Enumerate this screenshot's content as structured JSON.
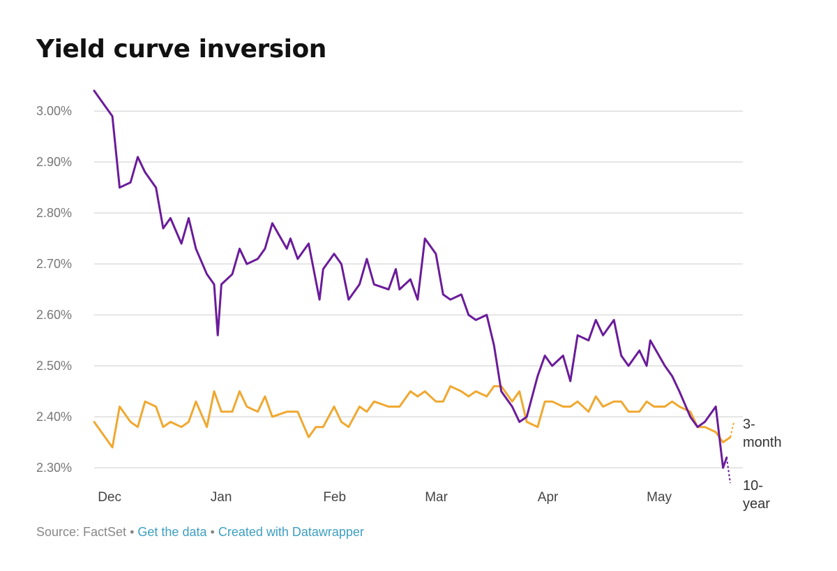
{
  "chart_data": {
    "type": "line",
    "title": "Yield curve inversion",
    "ylim": [
      2.27,
      3.04
    ],
    "yticks": [
      2.3,
      2.4,
      2.5,
      2.6,
      2.7,
      2.8,
      2.9,
      3.0
    ],
    "ytick_labels": [
      "2.30%",
      "2.40%",
      "2.50%",
      "2.60%",
      "2.70%",
      "2.80%",
      "2.90%",
      "3.00%"
    ],
    "x_start": "2018-11-30",
    "x_end": "2019-05-24",
    "xtick_dates": [
      "2018-12-01",
      "2019-01-01",
      "2019-02-01",
      "2019-03-01",
      "2019-04-01",
      "2019-05-01"
    ],
    "xtick_labels": [
      "Dec",
      "Jan",
      "Feb",
      "Mar",
      "Apr",
      "May"
    ],
    "grid": true,
    "legend": "inline labels at line ends",
    "series": [
      {
        "name": "10-year",
        "label_lines": [
          "10-",
          "year"
        ],
        "color": "#6a1b9a",
        "points": [
          [
            "2018-11-30",
            3.04
          ],
          [
            "2018-12-03",
            3.01
          ],
          [
            "2018-12-05",
            2.99
          ],
          [
            "2018-12-07",
            2.85
          ],
          [
            "2018-12-10",
            2.86
          ],
          [
            "2018-12-12",
            2.91
          ],
          [
            "2018-12-14",
            2.88
          ],
          [
            "2018-12-17",
            2.85
          ],
          [
            "2018-12-19",
            2.77
          ],
          [
            "2018-12-21",
            2.79
          ],
          [
            "2018-12-24",
            2.74
          ],
          [
            "2018-12-26",
            2.79
          ],
          [
            "2018-12-28",
            2.73
          ],
          [
            "2018-12-31",
            2.68
          ],
          [
            "2019-01-02",
            2.66
          ],
          [
            "2019-01-03",
            2.56
          ],
          [
            "2019-01-04",
            2.66
          ],
          [
            "2019-01-07",
            2.68
          ],
          [
            "2019-01-09",
            2.73
          ],
          [
            "2019-01-11",
            2.7
          ],
          [
            "2019-01-14",
            2.71
          ],
          [
            "2019-01-16",
            2.73
          ],
          [
            "2019-01-18",
            2.78
          ],
          [
            "2019-01-22",
            2.73
          ],
          [
            "2019-01-23",
            2.75
          ],
          [
            "2019-01-25",
            2.71
          ],
          [
            "2019-01-28",
            2.74
          ],
          [
            "2019-01-31",
            2.63
          ],
          [
            "2019-02-01",
            2.69
          ],
          [
            "2019-02-04",
            2.72
          ],
          [
            "2019-02-06",
            2.7
          ],
          [
            "2019-02-08",
            2.63
          ],
          [
            "2019-02-11",
            2.66
          ],
          [
            "2019-02-13",
            2.71
          ],
          [
            "2019-02-15",
            2.66
          ],
          [
            "2019-02-19",
            2.65
          ],
          [
            "2019-02-21",
            2.69
          ],
          [
            "2019-02-22",
            2.65
          ],
          [
            "2019-02-25",
            2.67
          ],
          [
            "2019-02-27",
            2.63
          ],
          [
            "2019-03-01",
            2.75
          ],
          [
            "2019-03-04",
            2.72
          ],
          [
            "2019-03-06",
            2.64
          ],
          [
            "2019-03-08",
            2.63
          ],
          [
            "2019-03-11",
            2.64
          ],
          [
            "2019-03-13",
            2.6
          ],
          [
            "2019-03-15",
            2.59
          ],
          [
            "2019-03-18",
            2.6
          ],
          [
            "2019-03-20",
            2.54
          ],
          [
            "2019-03-22",
            2.45
          ],
          [
            "2019-03-25",
            2.42
          ],
          [
            "2019-03-27",
            2.39
          ],
          [
            "2019-03-29",
            2.4
          ],
          [
            "2019-04-01",
            2.48
          ],
          [
            "2019-04-03",
            2.52
          ],
          [
            "2019-04-05",
            2.5
          ],
          [
            "2019-04-08",
            2.52
          ],
          [
            "2019-04-10",
            2.47
          ],
          [
            "2019-04-12",
            2.56
          ],
          [
            "2019-04-15",
            2.55
          ],
          [
            "2019-04-17",
            2.59
          ],
          [
            "2019-04-19",
            2.56
          ],
          [
            "2019-04-22",
            2.59
          ],
          [
            "2019-04-24",
            2.52
          ],
          [
            "2019-04-26",
            2.5
          ],
          [
            "2019-04-29",
            2.53
          ],
          [
            "2019-05-01",
            2.5
          ],
          [
            "2019-05-02",
            2.55
          ],
          [
            "2019-05-06",
            2.5
          ],
          [
            "2019-05-08",
            2.48
          ],
          [
            "2019-05-10",
            2.45
          ],
          [
            "2019-05-13",
            2.4
          ],
          [
            "2019-05-15",
            2.38
          ],
          [
            "2019-05-17",
            2.39
          ],
          [
            "2019-05-20",
            2.42
          ],
          [
            "2019-05-22",
            2.3
          ],
          [
            "2019-05-23",
            2.32
          ],
          [
            "2019-05-24",
            2.27
          ]
        ]
      },
      {
        "name": "3-month",
        "label_lines": [
          "3-",
          "month"
        ],
        "color": "#f0a830",
        "points": [
          [
            "2018-11-30",
            2.39
          ],
          [
            "2018-12-03",
            2.36
          ],
          [
            "2018-12-05",
            2.34
          ],
          [
            "2018-12-07",
            2.42
          ],
          [
            "2018-12-10",
            2.39
          ],
          [
            "2018-12-12",
            2.38
          ],
          [
            "2018-12-14",
            2.43
          ],
          [
            "2018-12-17",
            2.42
          ],
          [
            "2018-12-19",
            2.38
          ],
          [
            "2018-12-21",
            2.39
          ],
          [
            "2018-12-24",
            2.38
          ],
          [
            "2018-12-26",
            2.39
          ],
          [
            "2018-12-28",
            2.43
          ],
          [
            "2018-12-31",
            2.38
          ],
          [
            "2019-01-02",
            2.45
          ],
          [
            "2019-01-04",
            2.41
          ],
          [
            "2019-01-07",
            2.41
          ],
          [
            "2019-01-09",
            2.45
          ],
          [
            "2019-01-11",
            2.42
          ],
          [
            "2019-01-14",
            2.41
          ],
          [
            "2019-01-16",
            2.44
          ],
          [
            "2019-01-18",
            2.4
          ],
          [
            "2019-01-22",
            2.41
          ],
          [
            "2019-01-25",
            2.41
          ],
          [
            "2019-01-28",
            2.36
          ],
          [
            "2019-01-30",
            2.38
          ],
          [
            "2019-02-01",
            2.38
          ],
          [
            "2019-02-04",
            2.42
          ],
          [
            "2019-02-06",
            2.39
          ],
          [
            "2019-02-08",
            2.38
          ],
          [
            "2019-02-11",
            2.42
          ],
          [
            "2019-02-13",
            2.41
          ],
          [
            "2019-02-15",
            2.43
          ],
          [
            "2019-02-19",
            2.42
          ],
          [
            "2019-02-22",
            2.42
          ],
          [
            "2019-02-25",
            2.45
          ],
          [
            "2019-02-27",
            2.44
          ],
          [
            "2019-03-01",
            2.45
          ],
          [
            "2019-03-04",
            2.43
          ],
          [
            "2019-03-06",
            2.43
          ],
          [
            "2019-03-08",
            2.46
          ],
          [
            "2019-03-11",
            2.45
          ],
          [
            "2019-03-13",
            2.44
          ],
          [
            "2019-03-15",
            2.45
          ],
          [
            "2019-03-18",
            2.44
          ],
          [
            "2019-03-20",
            2.46
          ],
          [
            "2019-03-22",
            2.46
          ],
          [
            "2019-03-25",
            2.43
          ],
          [
            "2019-03-27",
            2.45
          ],
          [
            "2019-03-29",
            2.39
          ],
          [
            "2019-04-01",
            2.38
          ],
          [
            "2019-04-03",
            2.43
          ],
          [
            "2019-04-05",
            2.43
          ],
          [
            "2019-04-08",
            2.42
          ],
          [
            "2019-04-10",
            2.42
          ],
          [
            "2019-04-12",
            2.43
          ],
          [
            "2019-04-15",
            2.41
          ],
          [
            "2019-04-17",
            2.44
          ],
          [
            "2019-04-19",
            2.42
          ],
          [
            "2019-04-22",
            2.43
          ],
          [
            "2019-04-24",
            2.43
          ],
          [
            "2019-04-26",
            2.41
          ],
          [
            "2019-04-29",
            2.41
          ],
          [
            "2019-05-01",
            2.43
          ],
          [
            "2019-05-03",
            2.42
          ],
          [
            "2019-05-06",
            2.42
          ],
          [
            "2019-05-08",
            2.43
          ],
          [
            "2019-05-10",
            2.42
          ],
          [
            "2019-05-13",
            2.41
          ],
          [
            "2019-05-15",
            2.38
          ],
          [
            "2019-05-17",
            2.38
          ],
          [
            "2019-05-20",
            2.37
          ],
          [
            "2019-05-22",
            2.35
          ],
          [
            "2019-05-24",
            2.36
          ],
          [
            "2019-05-25",
            2.39
          ]
        ]
      }
    ]
  },
  "footer": {
    "source": "Source: FactSet",
    "separator": "•",
    "get_data": "Get the data",
    "created_with": "Created with Datawrapper"
  }
}
